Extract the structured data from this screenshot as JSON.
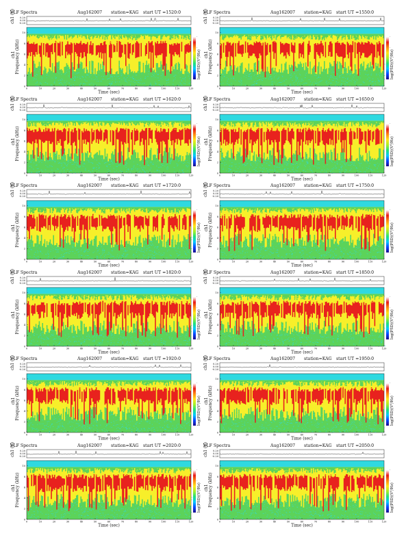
{
  "common": {
    "title": "VLF Spectra",
    "date": "Aug162007",
    "station": "station=KAG",
    "start_label": "start  UT  =",
    "xlabel": "Time  (sec)",
    "ylabel_freq": "Frequency  (kHz)",
    "ylabel_ch": "ch1",
    "ylabel_ch_top": "ch1 (V)",
    "ylabel_cbar": "log(PSD)(V²/Hz)",
    "cbar_ticks": [
      "-",
      "-",
      "-",
      "-",
      "-"
    ],
    "colors": {
      "cyan_band": "#2fd9e0",
      "green": "#5cd35a",
      "yellow": "#f7ef2a",
      "red": "#e8221e",
      "cbar": [
        "#1a0a8c",
        "#0a46ff",
        "#00c8ff",
        "#22e07a",
        "#a6ef2a",
        "#ffe51a",
        "#ff8a12",
        "#e81c18",
        "#ffffff"
      ]
    }
  },
  "panels": [
    {
      "start": "1520:0"
    },
    {
      "start": "1550:0"
    },
    {
      "start": "1620:0"
    },
    {
      "start": "1650:0"
    },
    {
      "start": "1720:0"
    },
    {
      "start": "1750:0"
    },
    {
      "start": "1820:0"
    },
    {
      "start": "1850:0"
    },
    {
      "start": "1920:0"
    },
    {
      "start": "1950:0"
    },
    {
      "start": "2020:0"
    },
    {
      "start": "2050:0"
    }
  ],
  "chart_data": {
    "type": "heatmap",
    "x_ticks": [
      0,
      10,
      20,
      30,
      40,
      50,
      60,
      70,
      80,
      90,
      100,
      110,
      120
    ],
    "xlim": [
      0,
      120
    ],
    "freq_ticks": [
      0,
      2,
      4,
      6,
      8,
      10
    ],
    "ylim_khz": [
      0,
      11
    ],
    "ch_ticks": [
      "0.20",
      "0.00",
      "-0.20"
    ],
    "spectra_bands_khz": [
      {
        "range": [
          0,
          2.5
        ],
        "dominant": "green"
      },
      {
        "range": [
          2.5,
          5
        ],
        "dominant": "green/yellow"
      },
      {
        "range": [
          5,
          8.5
        ],
        "dominant": "red/yellow"
      },
      {
        "range": [
          8.5,
          9.8
        ],
        "dominant": "green/yellow"
      },
      {
        "range": [
          9.8,
          11
        ],
        "dominant": "cyan"
      }
    ]
  }
}
